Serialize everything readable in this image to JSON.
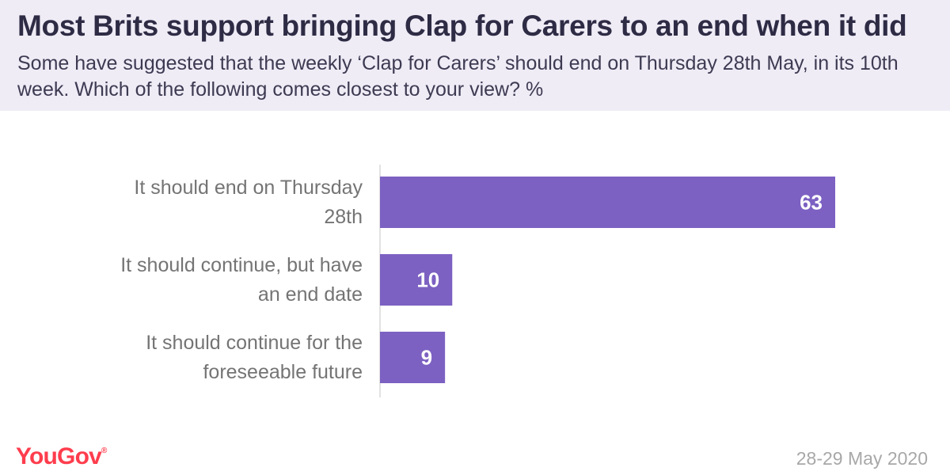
{
  "title": "Most Brits support bringing Clap for Carers to an end when it did",
  "subtitle": "Some have suggested that the weekly ‘Clap for Carers’ should end on Thursday 28th May, in its 10th week. Which of the following comes closest to your view? %",
  "brand": "YouGov",
  "date": "28-29 May 2020",
  "colors": {
    "bar": "#7c61c2",
    "header_bg": "#efecf6",
    "brand": "#ff3d4d"
  },
  "chart_data": {
    "type": "bar",
    "orientation": "horizontal",
    "categories": [
      [
        "It should end on Thursday",
        "28th"
      ],
      [
        "It should continue, but have",
        "an end date"
      ],
      [
        "It should continue for the",
        "foreseeable future"
      ]
    ],
    "values": [
      63,
      10,
      9
    ],
    "xlim": [
      0,
      80
    ],
    "grid": false,
    "legend": "none"
  }
}
